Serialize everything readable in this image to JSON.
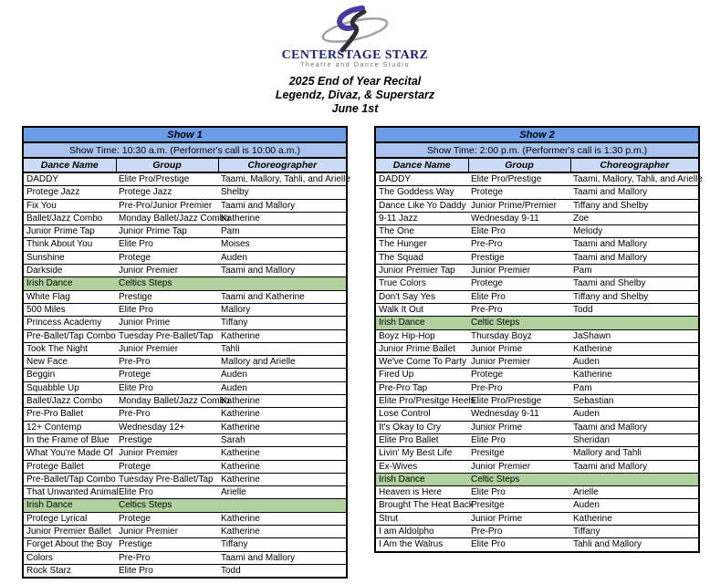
{
  "brand": {
    "name": "CENTERSTAGE STARZ",
    "tagline": "Theatre and Dance Studio"
  },
  "event": {
    "title": "2025 End of Year Recital",
    "subtitle": "Legendz, Divaz, & Superstarz",
    "date": "June 1st"
  },
  "colors": {
    "show_band_bg": "#6D9CE6",
    "time_band_bg": "#AAC4EF",
    "column_header_bg": "#CCDAF3",
    "highlight_row_bg": "#B2D1A0",
    "brand_navy": "#23216E",
    "logo_purple": "#483A9E",
    "logo_gray": "#A0A2A6",
    "logo_dark": "#2F2F38",
    "border": "#000000"
  },
  "tables": [
    {
      "title": "Show 1",
      "showtime": "Show Time: 10:30 a.m. (Performer's call is 10:00 a.m.)",
      "columns": [
        "Dance Name",
        "Group",
        "Choreographer"
      ],
      "rows": [
        {
          "dance": "DADDY",
          "group": "Elite Pro/Prestige",
          "choreographer": "Taami, Mallory, Tahli, and Arielle"
        },
        {
          "dance": "Protege Jazz",
          "group": "Protege Jazz",
          "choreographer": "Shelby"
        },
        {
          "dance": "Fix You",
          "group": "Pre-Pro/Junior Premier",
          "choreographer": "Taami and Mallory"
        },
        {
          "dance": "Ballet/Jazz Combo",
          "group": "Monday Ballet/Jazz Combo",
          "choreographer": "Katherine"
        },
        {
          "dance": "Junior Prime Tap",
          "group": "Junior Prime Tap",
          "choreographer": "Pam"
        },
        {
          "dance": "Think About You",
          "group": "Elite Pro",
          "choreographer": "Moises"
        },
        {
          "dance": "Sunshine",
          "group": "Protege",
          "choreographer": "Auden"
        },
        {
          "dance": "Darkside",
          "group": "Junior Premier",
          "choreographer": "Taami and Mallory"
        },
        {
          "dance": "Irish Dance",
          "group": "Celtics Steps",
          "choreographer": "",
          "highlight": true
        },
        {
          "dance": "White Flag",
          "group": "Prestige",
          "choreographer": "Taami and Katherine"
        },
        {
          "dance": "500 Miles",
          "group": "Elite Pro",
          "choreographer": "Mallory"
        },
        {
          "dance": "Princess Academy",
          "group": "Junior Prime",
          "choreographer": "Tiffany"
        },
        {
          "dance": "Pre-Ballet/Tap Combo",
          "group": "Tuesday Pre-Ballet/Tap",
          "choreographer": "Katherine"
        },
        {
          "dance": "Took The Night",
          "group": "Junior Premier",
          "choreographer": "Tahli"
        },
        {
          "dance": "New Face",
          "group": "Pre-Pro",
          "choreographer": "Mallory and Arielle"
        },
        {
          "dance": "Beggin",
          "group": "Protege",
          "choreographer": "Auden"
        },
        {
          "dance": "Squabble Up",
          "group": "Elite Pro",
          "choreographer": "Auden"
        },
        {
          "dance": "Ballet/Jazz Combo",
          "group": "Monday Ballet/Jazz Combo",
          "choreographer": "Katherine"
        },
        {
          "dance": "Pre-Pro Ballet",
          "group": "Pre-Pro",
          "choreographer": "Katherine"
        },
        {
          "dance": "12+ Contemp",
          "group": "Wednesday 12+",
          "choreographer": "Katherine"
        },
        {
          "dance": "In the Frame of Blue",
          "group": "Prestige",
          "choreographer": "Sarah"
        },
        {
          "dance": "What You're Made Of",
          "group": "Junior Premier",
          "choreographer": "Katherine"
        },
        {
          "dance": "Protege Ballet",
          "group": "Protege",
          "choreographer": "Katherine"
        },
        {
          "dance": "Pre-Ballet/Tap Combo",
          "group": "Tuesday Pre-Ballet/Tap",
          "choreographer": "Katherine"
        },
        {
          "dance": "That Unwanted Animal",
          "group": "Elite Pro",
          "choreographer": "Arielle"
        },
        {
          "dance": "Irish Dance",
          "group": "Celtics Steps",
          "choreographer": "",
          "highlight": true
        },
        {
          "dance": "Protege Lyrical",
          "group": "Protege",
          "choreographer": "Katherine"
        },
        {
          "dance": "Junior Premier Ballet",
          "group": "Junior Premier",
          "choreographer": "Katherine"
        },
        {
          "dance": "Forget About the Boy",
          "group": "Prestige",
          "choreographer": "Tiffany"
        },
        {
          "dance": "Colors",
          "group": "Pre-Pro",
          "choreographer": "Taami and Mallory"
        },
        {
          "dance": "Rock Starz",
          "group": "Elite Pro",
          "choreographer": "Todd"
        }
      ]
    },
    {
      "title": "Show 2",
      "showtime": "Show Time: 2:00 p.m. (Performer's call is 1:30 p.m.)",
      "columns": [
        "Dance Name",
        "Group",
        "Choreographer"
      ],
      "rows": [
        {
          "dance": "DADDY",
          "group": "Elite Pro/Prestige",
          "choreographer": "Taami, Mallory, Tahli, and Arielle"
        },
        {
          "dance": "The Goddess Way",
          "group": "Protege",
          "choreographer": "Taami and Mallory"
        },
        {
          "dance": "Dance Like Yo Daddy",
          "group": "Junior Prime/Premier",
          "choreographer": "Tiffany and Shelby"
        },
        {
          "dance": "9-11 Jazz",
          "group": "Wednesday 9-11",
          "choreographer": "Zoe"
        },
        {
          "dance": "The One",
          "group": "Elite Pro",
          "choreographer": "Melody"
        },
        {
          "dance": "The Hunger",
          "group": "Pre-Pro",
          "choreographer": "Taami and Mallory"
        },
        {
          "dance": "The Squad",
          "group": "Prestige",
          "choreographer": "Taami and Mallory"
        },
        {
          "dance": "Junior Premier Tap",
          "group": "Junior Premier",
          "choreographer": "Pam"
        },
        {
          "dance": "True Colors",
          "group": "Protege",
          "choreographer": "Taami and Shelby"
        },
        {
          "dance": "Don't Say Yes",
          "group": "Elite Pro",
          "choreographer": "Tiffany and Shelby"
        },
        {
          "dance": "Walk It Out",
          "group": "Pre-Pro",
          "choreographer": "Todd"
        },
        {
          "dance": "Irish Dance",
          "group": "Celtic Steps",
          "choreographer": "",
          "highlight": true
        },
        {
          "dance": "Boyz Hip-Hop",
          "group": "Thursday Boyz",
          "choreographer": "JaShawn"
        },
        {
          "dance": "Junior Prime Ballet",
          "group": "Junior Prime",
          "choreographer": "Katherine"
        },
        {
          "dance": "We've Come To Party",
          "group": "Junior Premier",
          "choreographer": "Auden"
        },
        {
          "dance": "Fired Up",
          "group": "Protege",
          "choreographer": "Katherine"
        },
        {
          "dance": "Pre-Pro Tap",
          "group": "Pre-Pro",
          "choreographer": "Pam"
        },
        {
          "dance": "Elite Pro/Presitge Heels",
          "group": "Elite Pro/Prestige",
          "choreographer": "Sebastian"
        },
        {
          "dance": "Lose Control",
          "group": "Wednesday 9-11",
          "choreographer": "Auden"
        },
        {
          "dance": "It's Okay to Cry",
          "group": "Junior Prime",
          "choreographer": "Taami and Mallory"
        },
        {
          "dance": "Elite Pro Ballet",
          "group": "Elite Pro",
          "choreographer": "Sheridan"
        },
        {
          "dance": "Livin' My Best Life",
          "group": "Presitge",
          "choreographer": "Mallory and Tahli"
        },
        {
          "dance": "Ex-Wives",
          "group": "Junior Premier",
          "choreographer": "Taami and Mallory"
        },
        {
          "dance": "Irish Dance",
          "group": "Celtic Steps",
          "choreographer": "",
          "highlight": true
        },
        {
          "dance": "Heaven is Here",
          "group": "Elite Pro",
          "choreographer": "Arielle"
        },
        {
          "dance": "Brought The Heat Back",
          "group": "Presitge",
          "choreographer": "Auden"
        },
        {
          "dance": "Strut",
          "group": "Junior Prime",
          "choreographer": "Katherine"
        },
        {
          "dance": "I am Aldolpho",
          "group": "Pre-Pro",
          "choreographer": "Tiffany"
        },
        {
          "dance": "I Am the Walrus",
          "group": "Elite Pro",
          "choreographer": "Tahli and Mallory"
        }
      ]
    }
  ]
}
